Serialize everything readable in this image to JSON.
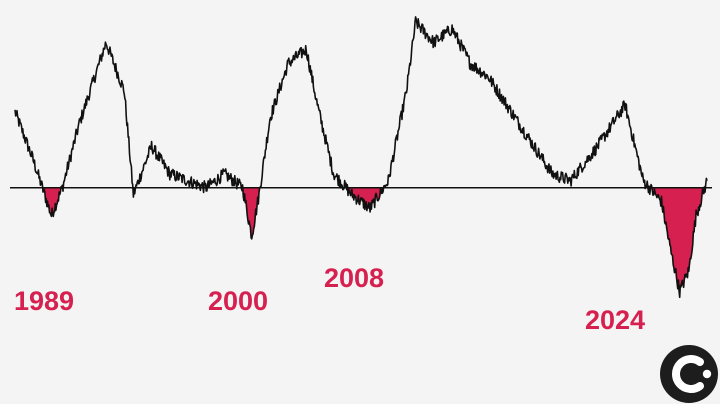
{
  "chart_data": {
    "type": "line",
    "title": "",
    "xlabel": "",
    "ylabel": "",
    "baseline_value": 0,
    "line_color": "#111111",
    "fill_color": "#d6204f",
    "x": [
      1987.0,
      1988.0,
      1989.0,
      1989.6,
      1990.5,
      1992.0,
      1993.0,
      1993.5,
      1994.5,
      1995.5,
      1996.5,
      1997.5,
      1998.5,
      1999.5,
      2000.0,
      2000.4,
      2001.0,
      2002.0,
      2003.0,
      2003.6,
      2004.5,
      2005.5,
      2006.5,
      2007.5,
      2008.5,
      2009.0,
      2010.0,
      2011.0,
      2012.0,
      2013.0,
      2014.0,
      2015.0,
      2015.5,
      2016.5,
      2017.5,
      2019.0,
      2020.5,
      2021.5,
      2022.5,
      2023.0,
      2023.5,
      2024.0,
      2024.4,
      2025.0
    ],
    "y": [
      0.55,
      0.2,
      -0.2,
      0.0,
      0.45,
      1.05,
      0.7,
      -0.05,
      0.3,
      0.1,
      0.05,
      0.0,
      0.1,
      0.0,
      -0.35,
      -0.05,
      0.5,
      0.9,
      1.0,
      0.6,
      0.1,
      -0.05,
      -0.15,
      0.05,
      0.7,
      1.2,
      1.05,
      1.15,
      0.9,
      0.8,
      0.6,
      0.4,
      0.3,
      0.1,
      0.05,
      0.3,
      0.6,
      0.05,
      -0.1,
      -0.45,
      -0.75,
      -0.6,
      -0.2,
      0.05
    ],
    "xlim": [
      1987.0,
      2025.0
    ],
    "ylim": [
      -1.0,
      1.3
    ],
    "highlighted_periods": [
      {
        "label": "1989",
        "year": 1989
      },
      {
        "label": "2000",
        "year": 2000
      },
      {
        "label": "2008",
        "year": 2008
      },
      {
        "label": "2024",
        "year": 2024
      }
    ]
  },
  "logo": {
    "name": "c-logo-icon",
    "background": "#1d1d1d",
    "foreground": "#ffffff"
  }
}
